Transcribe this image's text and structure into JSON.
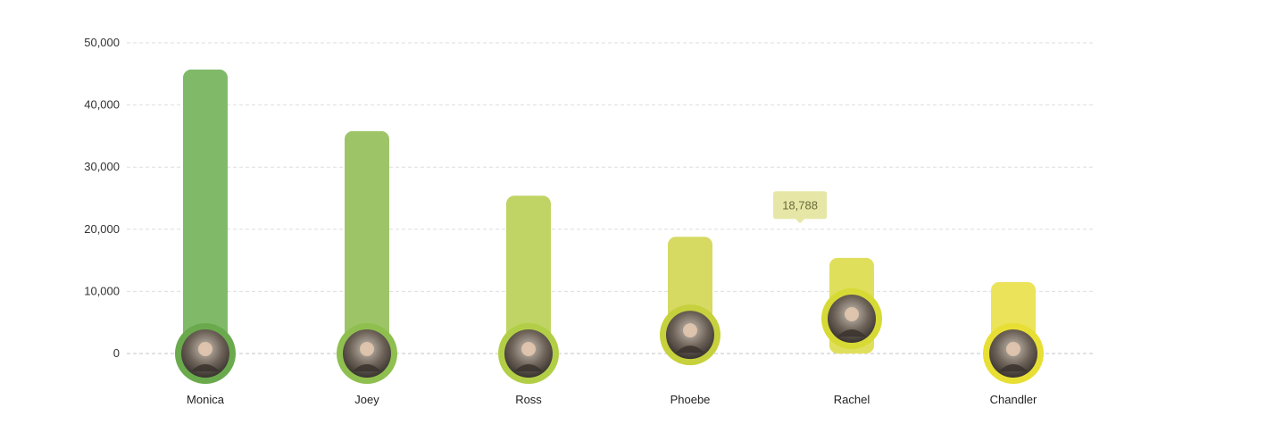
{
  "chart_data": {
    "type": "bar",
    "categories": [
      "Monica",
      "Joey",
      "Ross",
      "Phoebe",
      "Rachel",
      "Chandler"
    ],
    "values": [
      45700,
      35800,
      25400,
      18788,
      15400,
      11500
    ],
    "ylim": [
      0,
      50000
    ],
    "yticks": [
      "0",
      "10,000",
      "20,000",
      "30,000",
      "40,000",
      "50,000"
    ],
    "ytick_values": [
      0,
      10000,
      20000,
      30000,
      40000,
      50000
    ],
    "grid": true,
    "bar_colors": [
      "#80ba69",
      "#9dc567",
      "#bfd464",
      "#d6da62",
      "#e0df5c",
      "#ebe35a"
    ],
    "ring_colors": [
      "#6aaa4d",
      "#8fbf4f",
      "#b2ce46",
      "#c6d13d",
      "#d7da35",
      "#e8df35"
    ],
    "avatar_icons": [
      "avatar-monica-icon",
      "avatar-joey-icon",
      "avatar-ross-icon",
      "avatar-phoebe-icon",
      "avatar-rachel-icon",
      "avatar-chandler-icon"
    ],
    "avatar_values": [
      0,
      0,
      0,
      3000,
      5600,
      0
    ],
    "tooltip": {
      "category": "Phoebe",
      "label": "18,788"
    }
  }
}
